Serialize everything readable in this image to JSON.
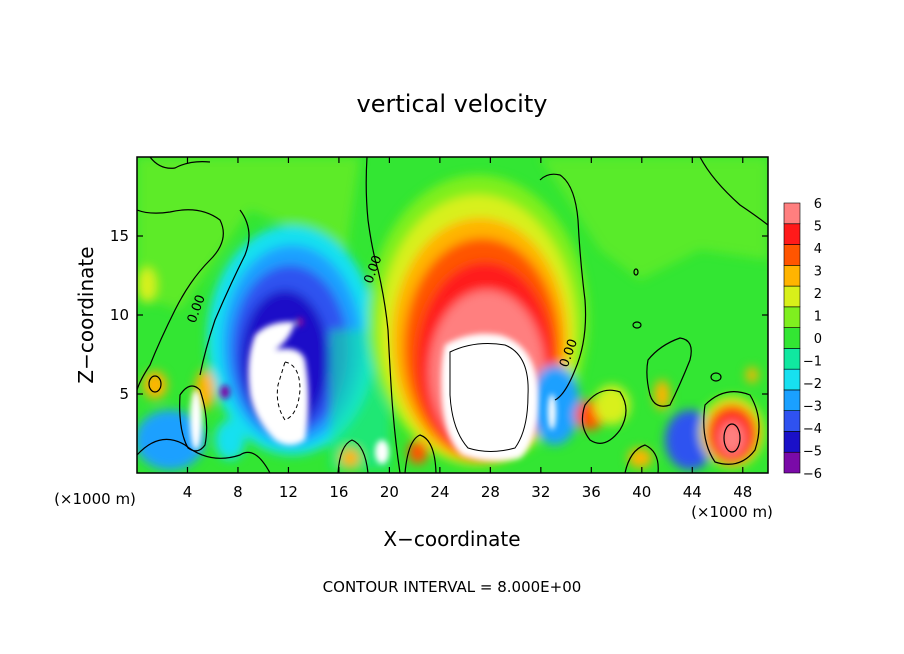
{
  "chart_data": {
    "type": "heatmap",
    "title": "vertical velocity",
    "xlabel": "X−coordinate",
    "ylabel": "Z−coordinate",
    "x_unit_label": "(×1000 m)",
    "x_unit_label_right": "(×1000 m)",
    "footer": "CONTOUR INTERVAL = 8.000E+00",
    "xlim": [
      0,
      50
    ],
    "ylim": [
      0,
      20
    ],
    "x_ticks": [
      4,
      8,
      12,
      16,
      20,
      24,
      28,
      32,
      36,
      40,
      44,
      48
    ],
    "x_tick_labels": [
      "4",
      "8",
      "12",
      "16",
      "20",
      "24",
      "28",
      "32",
      "36",
      "40",
      "44",
      "48"
    ],
    "y_ticks": [
      5,
      10,
      15
    ],
    "y_tick_labels": [
      "5",
      "10",
      "15"
    ],
    "contour_labels": [
      {
        "text": "0.00",
        "x": 19,
        "y": 12.8
      },
      {
        "text": "0.00",
        "x": 5,
        "y": 10.3
      },
      {
        "text": "0.00",
        "x": 34.5,
        "y": 7.5
      }
    ],
    "colorbar": {
      "levels": [
        -6,
        -5,
        -4,
        -3,
        -2,
        -1,
        0,
        1,
        2,
        3,
        4,
        5,
        6
      ],
      "level_labels": [
        "−6",
        "−5",
        "−4",
        "−3",
        "−2",
        "−1",
        "0",
        "1",
        "2",
        "3",
        "4",
        "5",
        "6"
      ],
      "colors": [
        "#7a0aa8",
        "#1a10c8",
        "#2f52f0",
        "#1aa0ff",
        "#17e0f0",
        "#10e8a0",
        "#33e633",
        "#7fef1f",
        "#d8f01a",
        "#ffb400",
        "#ff5500",
        "#ff1a1a",
        "#ff7f7f"
      ]
    },
    "features": [
      {
        "kind": "updraft",
        "value": 6,
        "x_center": 28,
        "z_center": 7.5,
        "x_halfwidth": 6,
        "z_halfwidth": 7
      },
      {
        "kind": "downdraft",
        "value": -6,
        "x_center": 12.5,
        "z_center": 7.5,
        "x_halfwidth": 4,
        "z_halfwidth": 6
      },
      {
        "kind": "updraft",
        "value": 5,
        "x_center": 46.5,
        "z_center": 2.5,
        "x_halfwidth": 2,
        "z_halfwidth": 2.5
      },
      {
        "kind": "downdraft",
        "value": -6,
        "x_center": 5,
        "z_center": 3,
        "x_halfwidth": 1,
        "z_halfwidth": 3
      },
      {
        "kind": "downdraft",
        "value": -6,
        "x_center": 19.5,
        "z_center": 1.5,
        "x_halfwidth": 1,
        "z_halfwidth": 1.2
      },
      {
        "kind": "downdraft",
        "value": -4,
        "x_center": 33.5,
        "z_center": 4,
        "x_halfwidth": 1,
        "z_halfwidth": 3
      }
    ]
  }
}
